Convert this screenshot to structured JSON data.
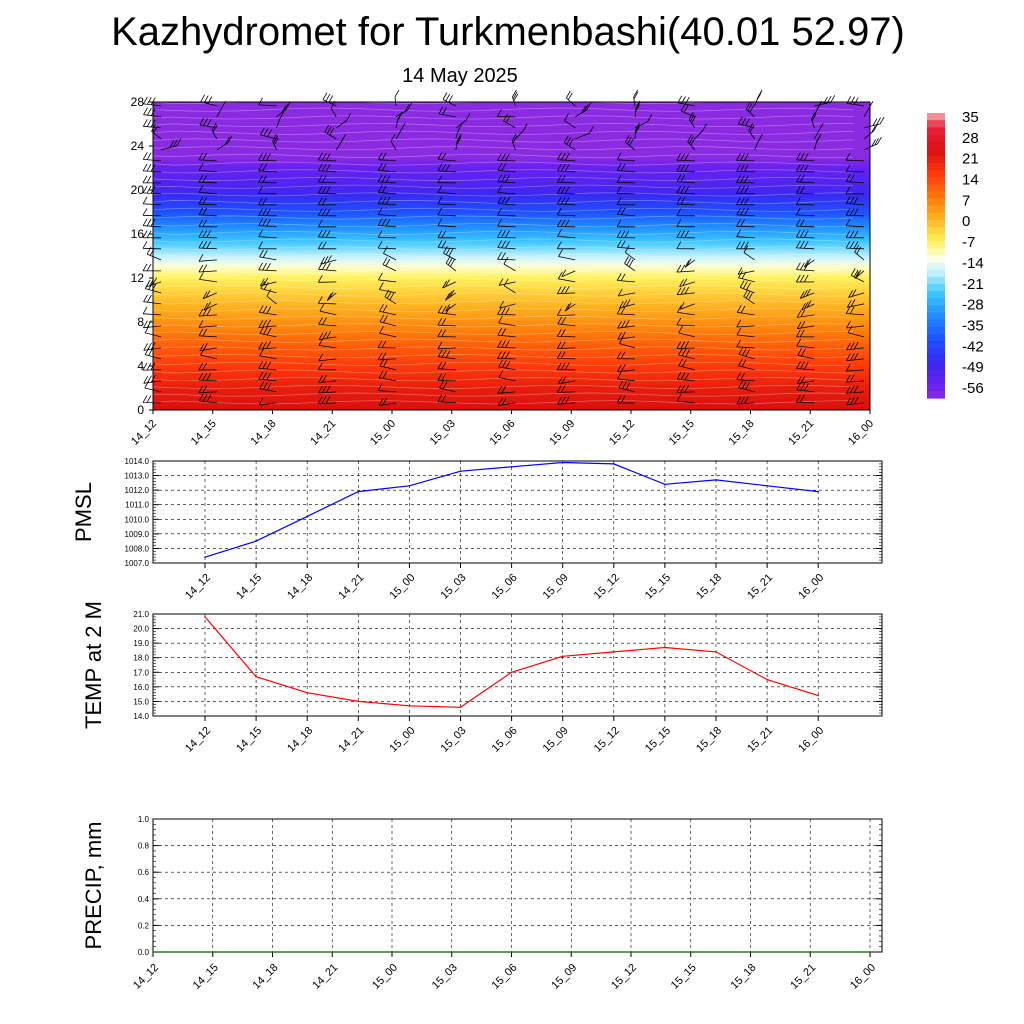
{
  "header": {
    "title": "Kazhydromet for Turkmenbashi(40.01 52.97)",
    "subtitle": "14 May 2025"
  },
  "colors": {
    "pmsl_line": "#0000ff",
    "temp_line": "#ff0000",
    "precip_line": "#006400",
    "wind_barb": "#000000",
    "grid": "#000000"
  },
  "chart_data": [
    {
      "type": "heatmap",
      "title": "",
      "xlabel": "",
      "ylabel": "",
      "x": [
        "14_12",
        "14_15",
        "14_18",
        "14_21",
        "15_00",
        "15_03",
        "15_06",
        "15_09",
        "15_12",
        "15_15",
        "15_18",
        "15_21",
        "16_00"
      ],
      "y_ticks": [
        0,
        4,
        8,
        12,
        16,
        20,
        24,
        28
      ],
      "ylim": [
        0,
        28
      ],
      "colorbar": {
        "labels": [
          "35",
          "28",
          "21",
          "14",
          "7",
          "0",
          "-7",
          "-14",
          "-21",
          "-28",
          "-35",
          "-42",
          "-49",
          "-56"
        ],
        "range": [
          -60,
          38
        ],
        "stops": [
          {
            "value": 38,
            "color": "#f5b3b8"
          },
          {
            "value": 33,
            "color": "#e8223a"
          },
          {
            "value": 25,
            "color": "#d90f0f"
          },
          {
            "value": 17,
            "color": "#ff3a0a"
          },
          {
            "value": 9,
            "color": "#ff7a0a"
          },
          {
            "value": 2,
            "color": "#ffb01e"
          },
          {
            "value": -6,
            "color": "#fff15a"
          },
          {
            "value": -12,
            "color": "#ffffe6"
          },
          {
            "value": -17,
            "color": "#bff0ff"
          },
          {
            "value": -24,
            "color": "#3cc8ff"
          },
          {
            "value": -32,
            "color": "#1e8cff"
          },
          {
            "value": -40,
            "color": "#1e50ff"
          },
          {
            "value": -48,
            "color": "#3a28f0"
          },
          {
            "value": -56,
            "color": "#6d20ef"
          },
          {
            "value": -60,
            "color": "#8a2be2"
          }
        ]
      },
      "temperature_profile": [
        {
          "height": 0,
          "value": 25
        },
        {
          "height": 2,
          "value": 22
        },
        {
          "height": 4,
          "value": 17
        },
        {
          "height": 6,
          "value": 12
        },
        {
          "height": 8,
          "value": 6
        },
        {
          "height": 10,
          "value": 0
        },
        {
          "height": 12,
          "value": -6
        },
        {
          "height": 13,
          "value": -11
        },
        {
          "height": 14,
          "value": -17
        },
        {
          "height": 16,
          "value": -28
        },
        {
          "height": 18,
          "value": -40
        },
        {
          "height": 20,
          "value": -50
        },
        {
          "height": 22,
          "value": -55
        },
        {
          "height": 23,
          "value": -60
        },
        {
          "height": 28,
          "value": -60
        }
      ],
      "wind_barb_levels": [
        1,
        2,
        3,
        4,
        5,
        6,
        7,
        8,
        9,
        10,
        11,
        12,
        13,
        14,
        15,
        16,
        17,
        18,
        19,
        20,
        21,
        22,
        23,
        24,
        25,
        26,
        27,
        28
      ]
    },
    {
      "type": "line",
      "title": "",
      "xlabel": "",
      "ylabel": "PMSL",
      "categories": [
        "14_12",
        "14_15",
        "14_18",
        "14_21",
        "15_00",
        "15_03",
        "15_06",
        "15_09",
        "15_12",
        "15_15",
        "15_18",
        "15_21",
        "16_00"
      ],
      "ylim": [
        1007.0,
        1014.0
      ],
      "y_ticks": [
        "1007.0",
        "1008.0",
        "1009.0",
        "1010.0",
        "1011.0",
        "1012.0",
        "1013.0",
        "1014.0"
      ],
      "series": [
        {
          "values": [
            1007.4,
            1008.5,
            1010.2,
            1011.9,
            1012.3,
            1013.3,
            1013.6,
            1013.9,
            1013.8,
            1012.4,
            1012.7,
            1012.3,
            1011.9
          ]
        }
      ]
    },
    {
      "type": "line",
      "title": "",
      "xlabel": "",
      "ylabel": "TEMP at 2 M",
      "categories": [
        "14_12",
        "14_15",
        "14_18",
        "14_21",
        "15_00",
        "15_03",
        "15_06",
        "15_09",
        "15_12",
        "15_15",
        "15_18",
        "15_21",
        "16_00"
      ],
      "ylim": [
        14.0,
        21.0
      ],
      "y_ticks": [
        "14.0",
        "15.0",
        "16.0",
        "17.0",
        "18.0",
        "19.0",
        "20.0",
        "21.0"
      ],
      "series": [
        {
          "values": [
            20.8,
            16.7,
            15.6,
            15.0,
            14.7,
            14.6,
            17.0,
            18.1,
            18.4,
            18.7,
            18.4,
            16.5,
            15.4
          ]
        }
      ]
    },
    {
      "type": "line",
      "title": "",
      "xlabel": "",
      "ylabel": "PRECIP, mm",
      "categories": [
        "14_12",
        "14_15",
        "14_18",
        "14_21",
        "15_00",
        "15_03",
        "15_06",
        "15_09",
        "15_12",
        "15_15",
        "15_18",
        "15_21",
        "16_00"
      ],
      "ylim": [
        0.0,
        1.0
      ],
      "y_ticks": [
        "0.0",
        "0.2",
        "0.4",
        "0.6",
        "0.8",
        "1.0"
      ],
      "series": [
        {
          "values": [
            0,
            0,
            0,
            0,
            0,
            0,
            0,
            0,
            0,
            0,
            0,
            0,
            0
          ]
        }
      ]
    }
  ]
}
